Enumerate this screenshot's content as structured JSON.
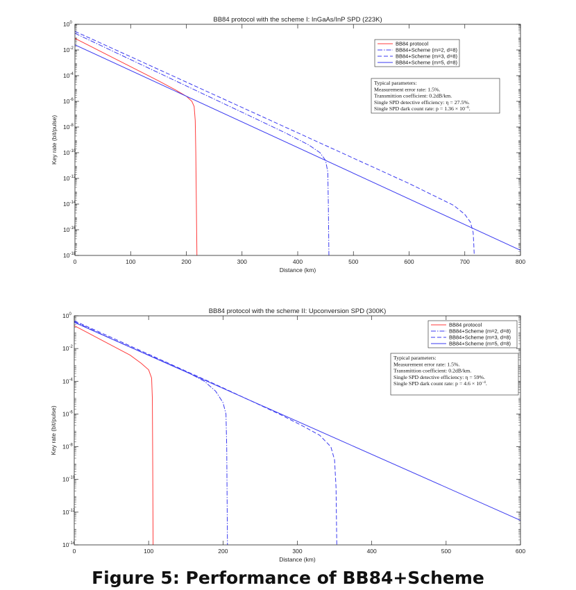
{
  "figure": {
    "caption": "Figure 5: Performance of BB84+Scheme"
  },
  "chart_data": [
    {
      "type": "line",
      "title": "BB84 protocol with the scheme I: InGaAs/InP SPD (223K)",
      "xlabel": "Distance (km)",
      "ylabel": "Key rate (bit/pulse)",
      "xlim": [
        0,
        800
      ],
      "ylim_exp": [
        -18,
        0
      ],
      "y_scale": "log",
      "x_ticks": [
        0,
        100,
        200,
        300,
        400,
        500,
        600,
        700,
        800
      ],
      "y_tick_exponents": [
        0,
        -2,
        -4,
        -6,
        -8,
        -10,
        -12,
        -14,
        -16,
        -18
      ],
      "grid": false,
      "legend_position": "top-right",
      "legend": [
        {
          "label": "BB84 protocol",
          "color": "#ff3b3b",
          "dash": "solid"
        },
        {
          "label": "BB84+Scheme (m=2, d=8)",
          "color": "#3a3af0",
          "dash": "dashdot"
        },
        {
          "label": "BB84+Scheme (m=3, d=8)",
          "color": "#3a3af0",
          "dash": "dashed"
        },
        {
          "label": "BB84+Scheme (m=5, d=8)",
          "color": "#3a3af0",
          "dash": "solid"
        }
      ],
      "params_box": {
        "lines": [
          "Typical parameters:",
          "Measurement error rate: 1.5%.",
          "Transmittion coefficient: 0.2dB/km.",
          "Single SPD detective efficiency: η = 27.5%.",
          "Single SPD dark count rate: p = 1.36 × 10^−6."
        ]
      },
      "series": [
        {
          "label_ref": 0,
          "points": [
            [
              0,
              -1.1
            ],
            [
              50,
              -2.2
            ],
            [
              100,
              -3.3
            ],
            [
              150,
              -4.4
            ],
            [
              180,
              -5.1
            ],
            [
              200,
              -5.6
            ],
            [
              210,
              -6.0
            ],
            [
              214,
              -6.4
            ],
            [
              216,
              -7.5
            ],
            [
              217,
              -10
            ],
            [
              218,
              -14
            ],
            [
              219,
              -18
            ]
          ]
        },
        {
          "label_ref": 1,
          "points": [
            [
              0,
              -0.7
            ],
            [
              100,
              -2.75
            ],
            [
              200,
              -4.8
            ],
            [
              300,
              -6.85
            ],
            [
              380,
              -8.5
            ],
            [
              420,
              -9.4
            ],
            [
              440,
              -10.0
            ],
            [
              450,
              -10.6
            ],
            [
              454,
              -11.5
            ],
            [
              455,
              -14
            ],
            [
              456,
              -18
            ]
          ]
        },
        {
          "label_ref": 2,
          "points": [
            [
              0,
              -0.55
            ],
            [
              200,
              -4.5
            ],
            [
              400,
              -8.45
            ],
            [
              600,
              -12.4
            ],
            [
              680,
              -14.1
            ],
            [
              700,
              -14.8
            ],
            [
              710,
              -15.4
            ],
            [
              715,
              -16.2
            ],
            [
              716,
              -17
            ],
            [
              717,
              -18
            ]
          ]
        },
        {
          "label_ref": 3,
          "points": [
            [
              0,
              -1.6
            ],
            [
              800,
              -17.6
            ]
          ]
        }
      ]
    },
    {
      "type": "line",
      "title": "BB84 protocol with the scheme II: Upconversion SPD (300K)",
      "xlabel": "Distance (km)",
      "ylabel": "Key rate (bit/pulse)",
      "xlim": [
        0,
        600
      ],
      "ylim_exp": [
        -14,
        0
      ],
      "y_scale": "log",
      "x_ticks": [
        0,
        100,
        200,
        300,
        400,
        500,
        600
      ],
      "y_tick_exponents": [
        0,
        -2,
        -4,
        -6,
        -8,
        -10,
        -12,
        -14
      ],
      "grid": false,
      "legend_position": "top-right",
      "legend": [
        {
          "label": "BB84 protocol",
          "color": "#ff3b3b",
          "dash": "solid"
        },
        {
          "label": "BB84+Scheme (m=2, d=8)",
          "color": "#3a3af0",
          "dash": "dashdot"
        },
        {
          "label": "BB84+Scheme (m=3, d=8)",
          "color": "#3a3af0",
          "dash": "dashed"
        },
        {
          "label": "BB84+Scheme (m=5, d=8)",
          "color": "#3a3af0",
          "dash": "solid"
        }
      ],
      "params_box": {
        "lines": [
          "Typical parameters:",
          "Measurement error rate: 1.5%.",
          "Transmittion coefficient: 0.2dB/km.",
          "Single SPD detective efficiency: η = 59%.",
          "Single SPD dark count rate: p = 4.6 × 10^−4."
        ]
      },
      "series": [
        {
          "label_ref": 0,
          "points": [
            [
              0,
              -0.6
            ],
            [
              25,
              -1.2
            ],
            [
              50,
              -1.8
            ],
            [
              75,
              -2.4
            ],
            [
              90,
              -2.9
            ],
            [
              100,
              -3.3
            ],
            [
              104,
              -3.8
            ],
            [
              105,
              -5
            ],
            [
              105.5,
              -9
            ],
            [
              106,
              -14
            ]
          ]
        },
        {
          "label_ref": 1,
          "points": [
            [
              0,
              -0.35
            ],
            [
              50,
              -1.4
            ],
            [
              100,
              -2.4
            ],
            [
              150,
              -3.4
            ],
            [
              175,
              -4.0
            ],
            [
              190,
              -4.6
            ],
            [
              200,
              -5.3
            ],
            [
              204,
              -6.0
            ],
            [
              205,
              -8
            ],
            [
              206,
              -14
            ]
          ]
        },
        {
          "label_ref": 2,
          "points": [
            [
              0,
              -0.3
            ],
            [
              100,
              -2.35
            ],
            [
              200,
              -4.4
            ],
            [
              280,
              -6.1
            ],
            [
              310,
              -6.8
            ],
            [
              330,
              -7.3
            ],
            [
              345,
              -8.0
            ],
            [
              350,
              -8.8
            ],
            [
              352,
              -10.5
            ],
            [
              353,
              -14
            ]
          ]
        },
        {
          "label_ref": 3,
          "points": [
            [
              0,
              -0.4
            ],
            [
              600,
              -12.5
            ]
          ]
        }
      ]
    }
  ]
}
